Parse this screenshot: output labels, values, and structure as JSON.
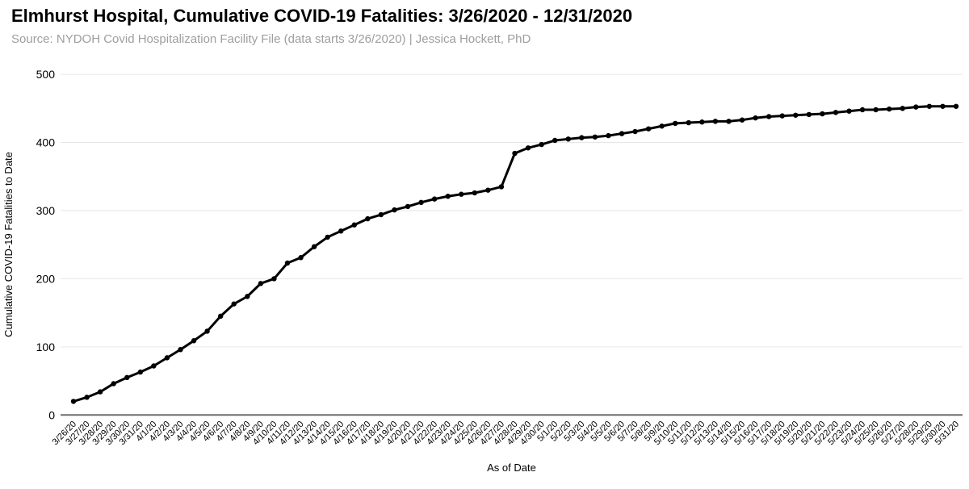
{
  "header": {
    "title": "Elmhurst Hospital, Cumulative COVID-19 Fatalities: 3/26/2020 - 12/31/2020",
    "subtitle": "Source: NYDOH Covid Hospitalization Facility File (data starts 3/26/2020) | Jessica Hockett, PhD"
  },
  "chart_data": {
    "type": "line",
    "title": "Elmhurst Hospital, Cumulative COVID-19 Fatalities: 3/26/2020 - 12/31/2020",
    "xlabel": "As of Date",
    "ylabel": "Cumulative COVID-19 Fatalities to Date",
    "legend": "none",
    "grid": "horizontal",
    "ylim": [
      0,
      500
    ],
    "yticks": [
      0,
      100,
      200,
      300,
      400,
      500
    ],
    "line_color": "#000000",
    "marker": "circle",
    "gridline_color": "#e6e6e6",
    "axis_line_color": "#6e6e6e",
    "tick_label_color": "#000000",
    "background": "#ffffff",
    "x": [
      "3/26/20",
      "3/27/20",
      "3/28/20",
      "3/29/20",
      "3/30/20",
      "3/31/20",
      "4/1/20",
      "4/2/20",
      "4/3/20",
      "4/4/20",
      "4/5/20",
      "4/6/20",
      "4/7/20",
      "4/8/20",
      "4/9/20",
      "4/10/20",
      "4/11/20",
      "4/12/20",
      "4/13/20",
      "4/14/20",
      "4/15/20",
      "4/16/20",
      "4/17/20",
      "4/18/20",
      "4/19/20",
      "4/20/20",
      "4/21/20",
      "4/22/20",
      "4/23/20",
      "4/24/20",
      "4/25/20",
      "4/26/20",
      "4/27/20",
      "4/28/20",
      "4/29/20",
      "4/30/20",
      "5/1/20",
      "5/2/20",
      "5/3/20",
      "5/4/20",
      "5/5/20",
      "5/6/20",
      "5/7/20",
      "5/8/20",
      "5/9/20",
      "5/10/20",
      "5/11/20",
      "5/12/20",
      "5/13/20",
      "5/14/20",
      "5/15/20",
      "5/16/20",
      "5/17/20",
      "5/18/20",
      "5/19/20",
      "5/20/20",
      "5/21/20",
      "5/22/20",
      "5/23/20",
      "5/24/20",
      "5/25/20",
      "5/26/20",
      "5/27/20",
      "5/28/20",
      "5/29/20",
      "5/30/20",
      "5/31/20"
    ],
    "series": [
      {
        "name": "Cumulative COVID-19 Fatalities to Date",
        "values": [
          20,
          26,
          34,
          46,
          55,
          63,
          72,
          84,
          96,
          109,
          123,
          145,
          163,
          174,
          193,
          200,
          223,
          231,
          247,
          261,
          270,
          279,
          288,
          294,
          301,
          306,
          312,
          317,
          321,
          324,
          326,
          330,
          335,
          384,
          392,
          397,
          403,
          405,
          407,
          408,
          410,
          413,
          416,
          420,
          424,
          428,
          429,
          430,
          431,
          431,
          433,
          436,
          438,
          439,
          440,
          441,
          442,
          444,
          446,
          448,
          448,
          449,
          450,
          452,
          453,
          453,
          453
        ]
      }
    ]
  }
}
